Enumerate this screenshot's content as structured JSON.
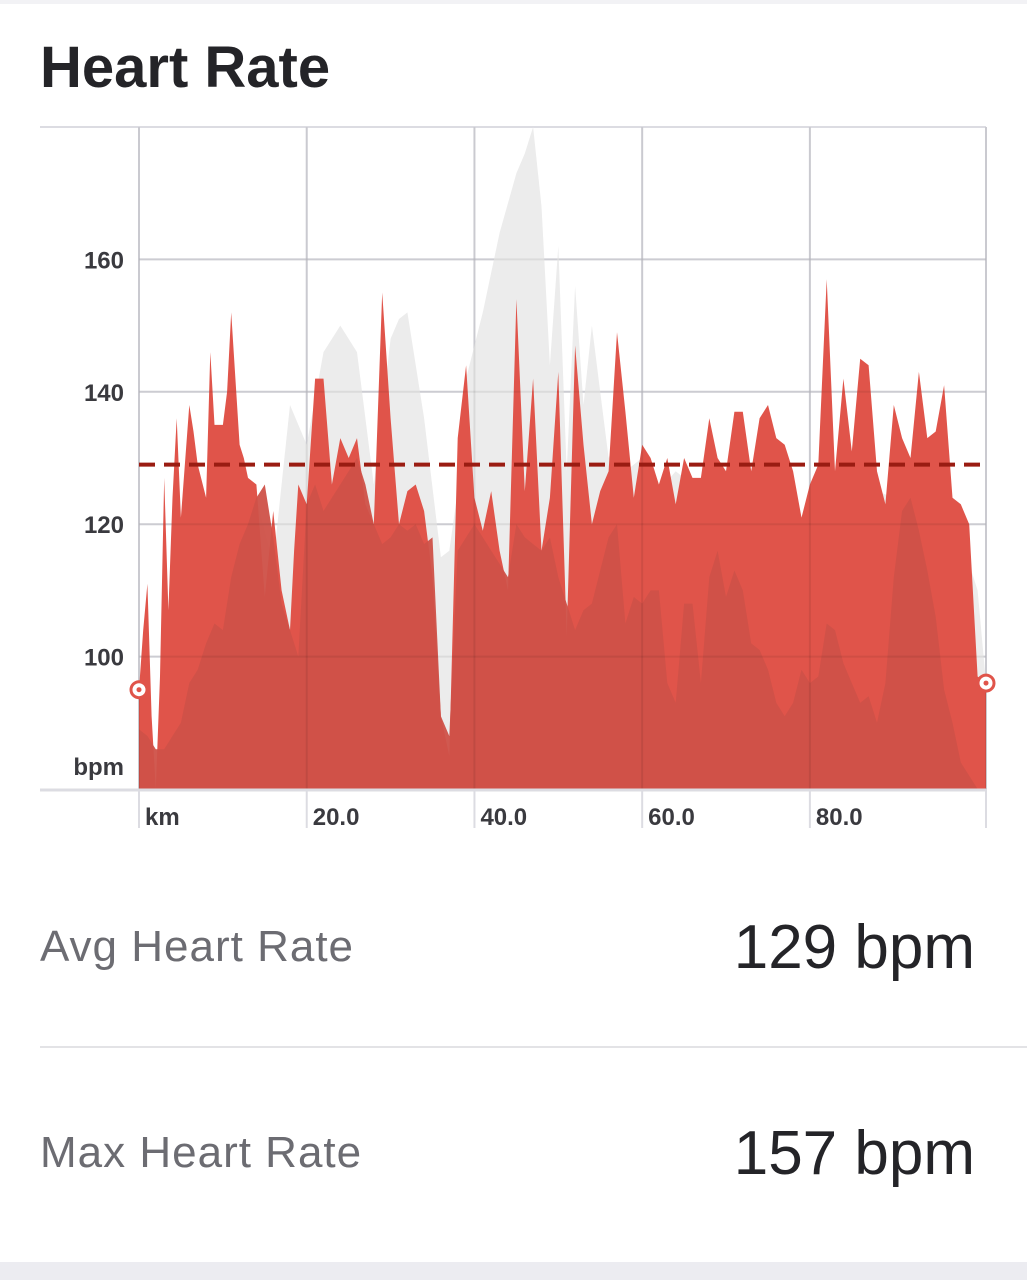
{
  "card": {
    "title": "Heart Rate"
  },
  "chart_data": {
    "type": "area",
    "title": "Heart Rate",
    "ylabel": "bpm",
    "xlabel": "km",
    "x_ticks": [
      "20.0",
      "40.0",
      "60.0",
      "80.0"
    ],
    "y_ticks": [
      "100",
      "120",
      "140",
      "160"
    ],
    "xlim": [
      0,
      101
    ],
    "ylim": [
      80,
      180
    ],
    "grid": true,
    "average_line": 129,
    "colors": {
      "primary": "#e0544a",
      "secondary": "#cf5148",
      "background_series": "#ececec",
      "average": "#9a1c12",
      "grid": "#dcdce2"
    },
    "series": [
      {
        "role": "primary",
        "x": [
          0,
          0.5,
          1,
          1.5,
          2,
          2.5,
          3,
          3.5,
          4,
          4.5,
          5,
          6,
          6.5,
          7,
          8,
          8.5,
          9,
          10,
          10.5,
          11,
          12,
          12.5,
          13,
          14,
          15,
          16,
          17,
          18,
          18.5,
          19,
          20,
          21,
          22,
          23,
          24,
          25,
          26,
          27,
          28,
          29,
          30,
          31,
          32,
          33,
          34,
          35,
          36,
          37,
          38,
          39,
          40,
          41,
          42,
          43,
          44,
          45,
          46,
          47,
          48,
          49,
          50,
          51,
          52,
          53,
          54,
          55,
          56,
          57,
          58,
          59,
          60,
          61,
          62,
          63,
          64,
          65,
          66,
          67,
          68,
          69,
          70,
          71,
          72,
          73,
          74,
          75,
          76,
          77,
          78,
          79,
          80,
          81,
          82,
          83,
          84,
          85,
          86,
          87,
          88,
          89,
          90,
          91,
          92,
          93,
          94,
          95,
          96,
          97,
          98,
          99,
          100,
          101
        ],
        "values": [
          95,
          104,
          111,
          91,
          80,
          97,
          127,
          107,
          124,
          136,
          121,
          138,
          134,
          129,
          124,
          146,
          135,
          135,
          140,
          152,
          132,
          130,
          127,
          126,
          109,
          122,
          110,
          104,
          116,
          126,
          123,
          142,
          142,
          126,
          133,
          130,
          133,
          123,
          120,
          155,
          136,
          120,
          125,
          126,
          122,
          112,
          91,
          85,
          133,
          144,
          124,
          119,
          125,
          116,
          110,
          154,
          125,
          142,
          116,
          124,
          143,
          103,
          147,
          132,
          120,
          125,
          128,
          149,
          137,
          124,
          132,
          130,
          126,
          130,
          123,
          130,
          127,
          127,
          136,
          130,
          128,
          137,
          137,
          128,
          136,
          138,
          133,
          132,
          128,
          121,
          126,
          129,
          157,
          128,
          142,
          131,
          145,
          144,
          128,
          123,
          138,
          133,
          130,
          143,
          133,
          134,
          141,
          124,
          123,
          120,
          97,
          96
        ]
      },
      {
        "role": "secondary",
        "x": [
          0,
          1,
          2,
          3,
          4,
          5,
          6,
          7,
          8,
          9,
          10,
          11,
          12,
          13,
          14,
          15,
          16,
          17,
          18,
          19,
          20,
          21,
          22,
          23,
          24,
          25,
          26,
          27,
          28,
          29,
          30,
          31,
          32,
          33,
          34,
          35,
          36,
          37,
          38,
          39,
          40,
          41,
          42,
          43,
          44,
          45,
          46,
          47,
          48,
          49,
          50,
          51,
          52,
          53,
          54,
          55,
          56,
          57,
          58,
          59,
          60,
          61,
          62,
          63,
          64,
          65,
          66,
          67,
          68,
          69,
          70,
          71,
          72,
          73,
          74,
          75,
          76,
          77,
          78,
          79,
          80,
          81,
          82,
          83,
          84,
          85,
          86,
          87,
          88,
          89,
          90,
          91,
          92,
          93,
          94,
          95,
          96,
          97,
          98,
          99,
          100,
          101
        ],
        "values": [
          89,
          88,
          86,
          86,
          88,
          90,
          96,
          98,
          102,
          105,
          104,
          112,
          117,
          120,
          124,
          126,
          118,
          108,
          104,
          100,
          123,
          126,
          122,
          124,
          126,
          128,
          130,
          126,
          120,
          117,
          118,
          120,
          119,
          120,
          117,
          118,
          91,
          88,
          116,
          118,
          120,
          118,
          116,
          114,
          112,
          120,
          118,
          117,
          116,
          118,
          112,
          108,
          104,
          107,
          108,
          113,
          118,
          120,
          105,
          109,
          108,
          110,
          110,
          96,
          93,
          108,
          108,
          96,
          112,
          116,
          109,
          113,
          110,
          102,
          101,
          98,
          93,
          91,
          93,
          98,
          96,
          97,
          105,
          104,
          99,
          96,
          93,
          94,
          90,
          96,
          112,
          122,
          124,
          119,
          113,
          106,
          95,
          90,
          84,
          82,
          80,
          80
        ]
      },
      {
        "role": "background",
        "x": [
          0,
          2,
          4,
          6,
          8,
          10,
          12,
          14,
          16,
          18,
          20,
          22,
          24,
          26,
          28,
          30,
          31,
          32,
          34,
          36,
          37,
          38,
          39,
          41,
          43,
          45,
          46,
          47,
          48,
          49,
          50,
          51,
          52,
          53,
          54,
          55,
          56,
          57,
          58,
          60,
          62,
          64,
          66,
          68,
          70,
          72,
          74,
          76,
          78,
          80,
          82,
          84,
          86,
          88,
          90,
          92,
          94,
          96,
          98,
          100,
          101
        ],
        "values": [
          95,
          80,
          100,
          120,
          120,
          128,
          130,
          124,
          114,
          138,
          132,
          146,
          150,
          146,
          126,
          148,
          151,
          152,
          136,
          115,
          116,
          125,
          142,
          152,
          164,
          173,
          176,
          180,
          168,
          144,
          162,
          128,
          156,
          138,
          150,
          140,
          130,
          133,
          128,
          130,
          125,
          128,
          126,
          124,
          126,
          125,
          124,
          125,
          120,
          122,
          126,
          125,
          130,
          125,
          124,
          126,
          128,
          124,
          118,
          110,
          96
        ]
      }
    ]
  },
  "stats": {
    "avg": {
      "label": "Avg Heart Rate",
      "value": "129 bpm"
    },
    "max": {
      "label": "Max Heart Rate",
      "value": "157 bpm"
    }
  }
}
